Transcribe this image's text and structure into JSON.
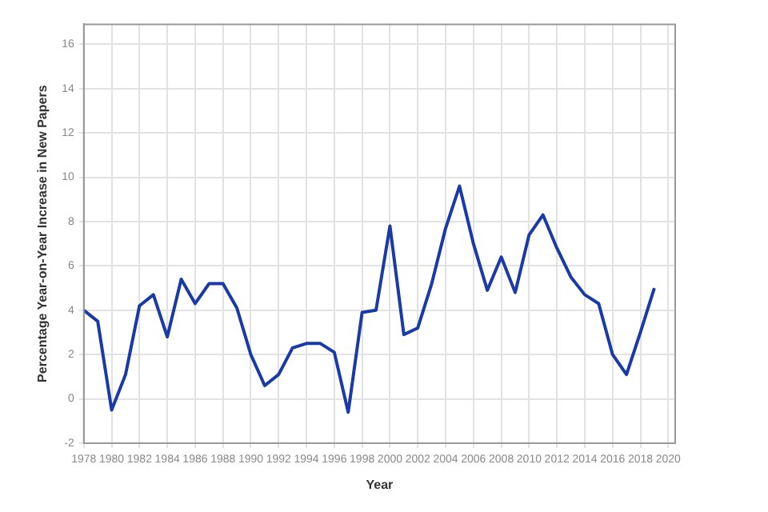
{
  "chart_data": {
    "type": "line",
    "xlabel": "Year",
    "ylabel": "Percentage Year-on-Year Increase in New Papers",
    "x": [
      1978,
      1979,
      1980,
      1981,
      1982,
      1983,
      1984,
      1985,
      1986,
      1987,
      1988,
      1989,
      1990,
      1991,
      1992,
      1993,
      1994,
      1995,
      1996,
      1997,
      1998,
      1999,
      2000,
      2001,
      2002,
      2003,
      2004,
      2005,
      2006,
      2007,
      2008,
      2009,
      2010,
      2011,
      2012,
      2013,
      2014,
      2015,
      2016,
      2017,
      2018,
      2019
    ],
    "series": [
      {
        "color": "#1a3aa8",
        "values": [
          4.0,
          3.5,
          -0.5,
          1.1,
          4.2,
          4.7,
          2.8,
          5.4,
          4.3,
          5.2,
          5.2,
          4.1,
          2.0,
          0.6,
          1.1,
          2.3,
          2.5,
          2.5,
          2.1,
          -0.6,
          3.9,
          4.0,
          7.8,
          2.9,
          3.2,
          5.2,
          7.7,
          9.6,
          7.0,
          4.9,
          6.4,
          4.8,
          7.4,
          8.3,
          6.8,
          5.5,
          4.7,
          4.3,
          2.0,
          1.1,
          3.0,
          5.0
        ]
      }
    ],
    "xlim": [
      1978,
      2020.5
    ],
    "xticks": [
      1978,
      1980,
      1982,
      1984,
      1986,
      1988,
      1990,
      1992,
      1994,
      1996,
      1998,
      2000,
      2002,
      2004,
      2006,
      2008,
      2010,
      2012,
      2014,
      2016,
      2018,
      2020
    ],
    "ylim": [
      -2,
      16.9
    ],
    "yticks": [
      -2,
      0,
      2,
      4,
      6,
      8,
      10,
      12,
      14,
      16
    ],
    "grid": true,
    "legend": false,
    "marker": "none",
    "line_style": "solid"
  }
}
